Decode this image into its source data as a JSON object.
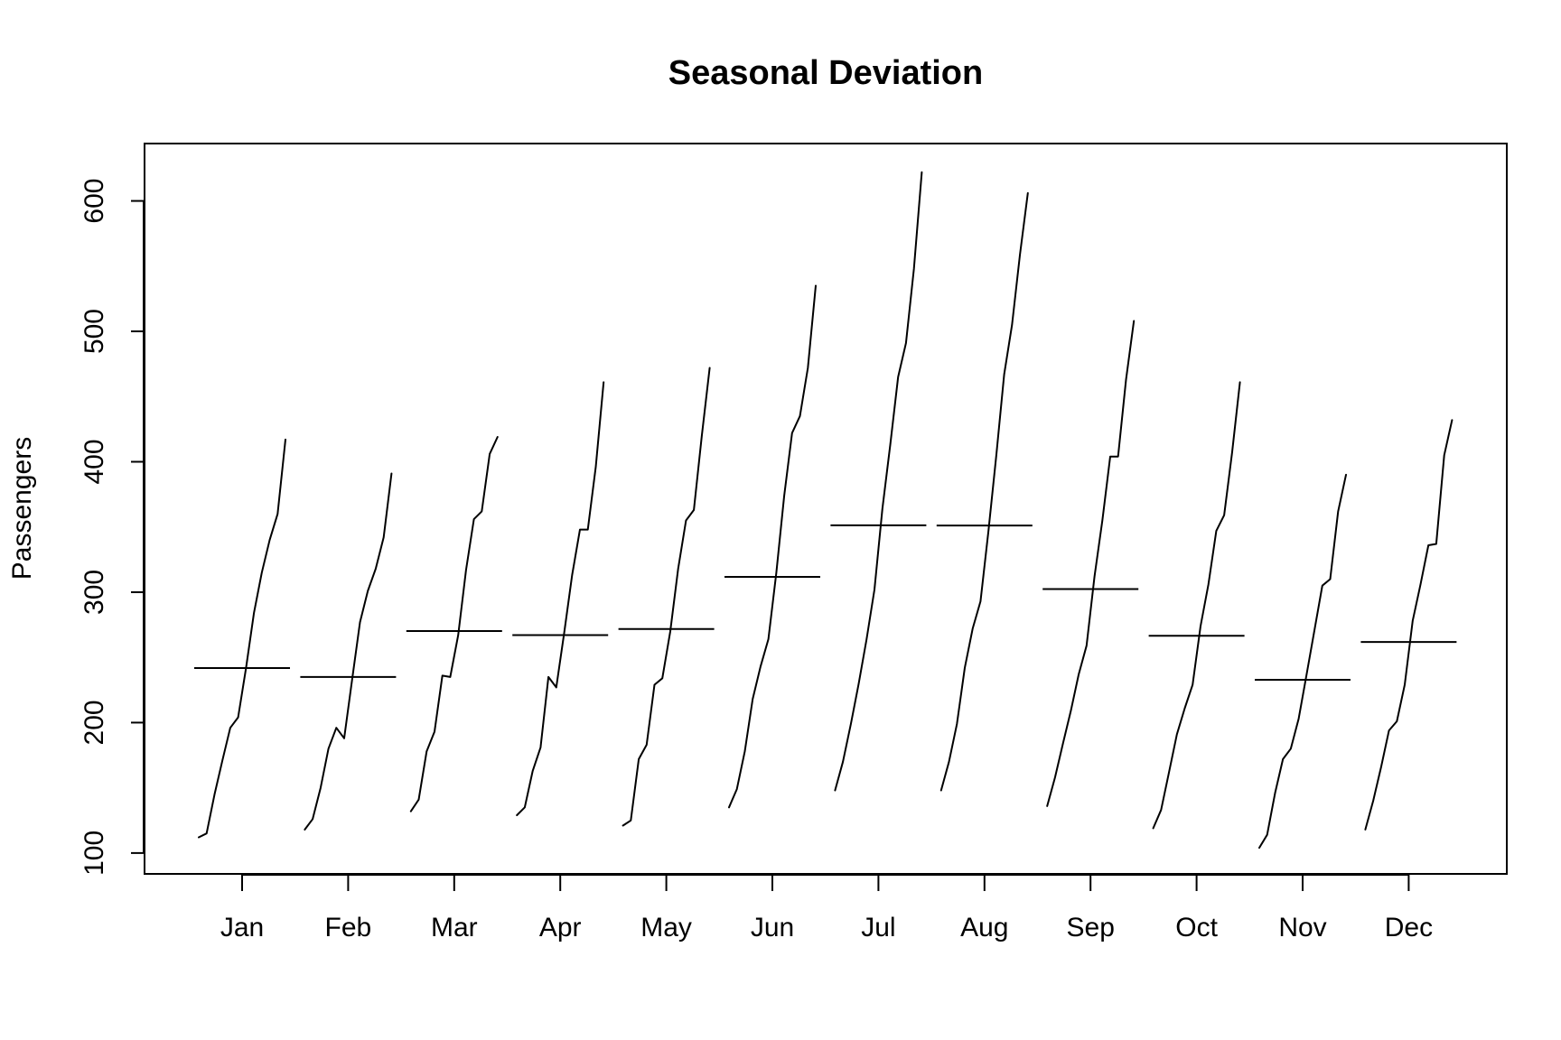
{
  "chart_data": {
    "type": "line",
    "title": "Seasonal Deviation",
    "xlabel": "",
    "ylabel": "Passengers",
    "ylim": [
      84,
      644
    ],
    "yticks": [
      100,
      200,
      300,
      400,
      500,
      600
    ],
    "grid": false,
    "legend": "none",
    "line_color": "#000000",
    "categories": [
      "Jan",
      "Feb",
      "Mar",
      "Apr",
      "May",
      "Jun",
      "Jul",
      "Aug",
      "Sep",
      "Oct",
      "Nov",
      "Dec"
    ],
    "series": [
      {
        "values": [
          112,
          115,
          145,
          171,
          196,
          204,
          242,
          284,
          315,
          340,
          360,
          417
        ],
        "mean": 241.8
      },
      {
        "values": [
          118,
          126,
          150,
          180,
          196,
          188,
          233,
          277,
          301,
          318,
          342,
          391
        ],
        "mean": 235.0
      },
      {
        "values": [
          132,
          141,
          178,
          193,
          236,
          235,
          267,
          317,
          356,
          362,
          406,
          419
        ],
        "mean": 270.2
      },
      {
        "values": [
          129,
          135,
          163,
          181,
          235,
          227,
          269,
          313,
          348,
          348,
          396,
          461
        ],
        "mean": 267.1
      },
      {
        "values": [
          121,
          125,
          172,
          183,
          229,
          234,
          270,
          318,
          355,
          363,
          420,
          472
        ],
        "mean": 271.8
      },
      {
        "values": [
          135,
          149,
          178,
          218,
          243,
          264,
          315,
          374,
          422,
          435,
          472,
          535
        ],
        "mean": 311.7
      },
      {
        "values": [
          148,
          170,
          199,
          230,
          264,
          302,
          364,
          413,
          465,
          491,
          548,
          622
        ],
        "mean": 351.3
      },
      {
        "values": [
          148,
          170,
          199,
          242,
          272,
          293,
          347,
          405,
          467,
          505,
          559,
          606
        ],
        "mean": 351.1
      },
      {
        "values": [
          136,
          158,
          184,
          209,
          237,
          259,
          312,
          355,
          404,
          404,
          463,
          508
        ],
        "mean": 302.4
      },
      {
        "values": [
          119,
          133,
          162,
          191,
          211,
          229,
          274,
          306,
          347,
          359,
          407,
          461
        ],
        "mean": 266.6
      },
      {
        "values": [
          104,
          114,
          146,
          172,
          180,
          203,
          237,
          271,
          305,
          310,
          362,
          390
        ],
        "mean": 232.8
      },
      {
        "values": [
          118,
          140,
          166,
          194,
          201,
          229,
          278,
          306,
          336,
          337,
          405,
          432
        ],
        "mean": 261.8
      }
    ]
  }
}
